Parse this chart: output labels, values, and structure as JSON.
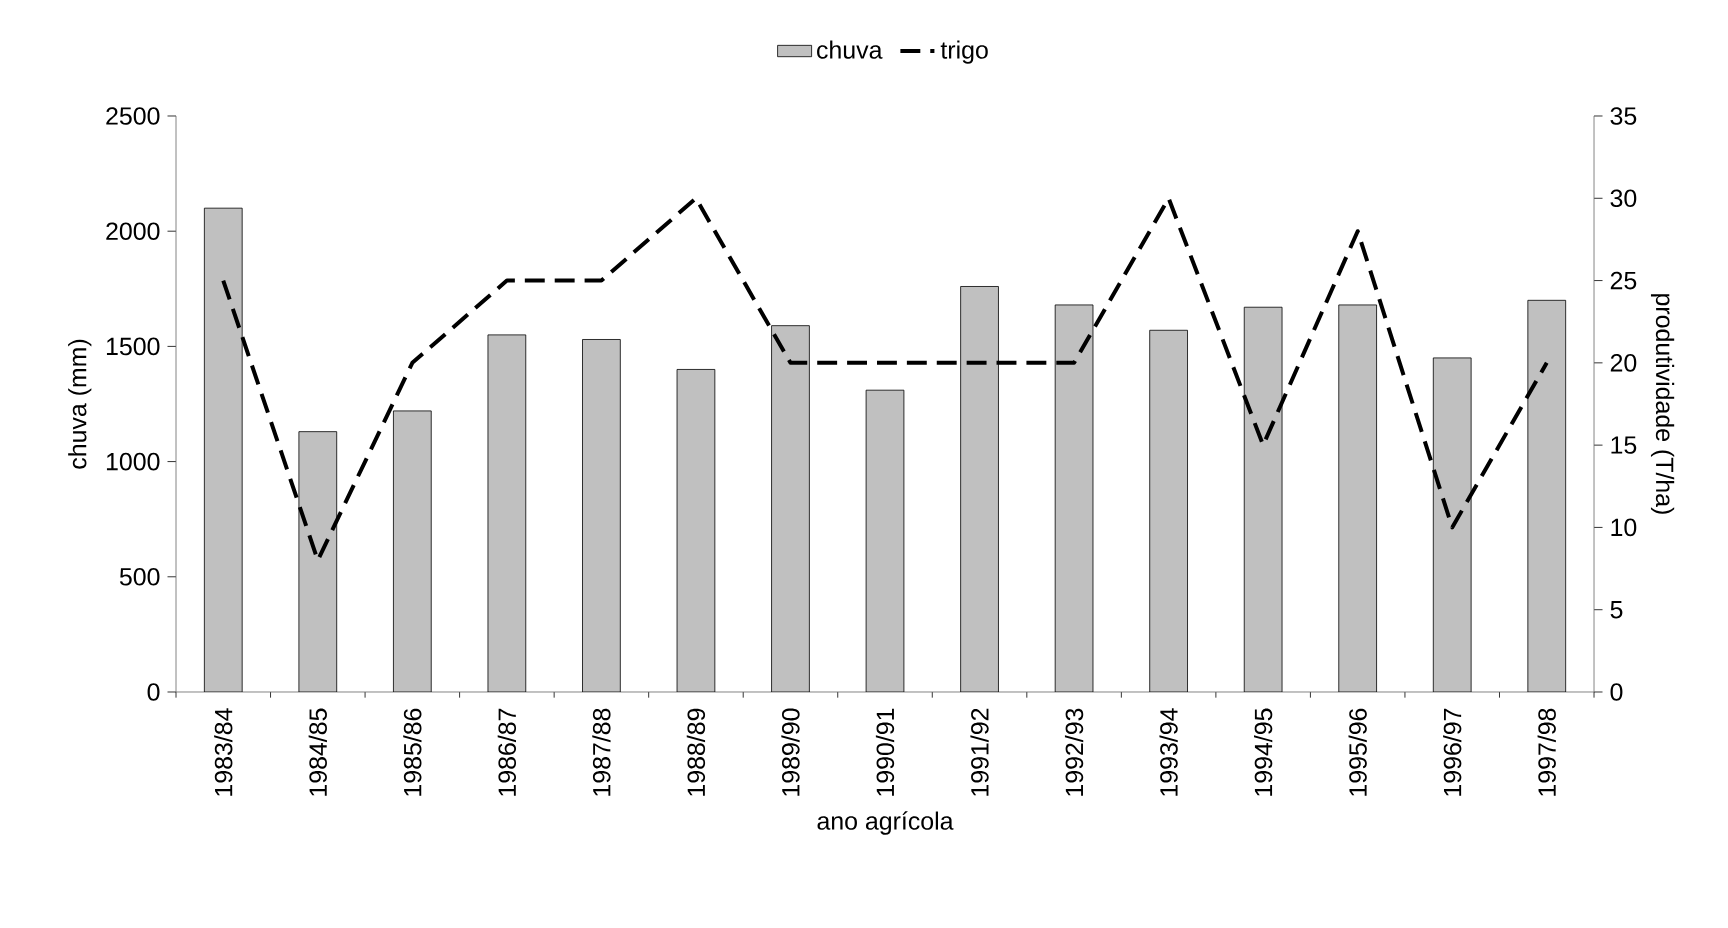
{
  "chart_data": {
    "type": "bar",
    "xlabel": "ano agrícola",
    "ylabel": "chuva (mm)",
    "y2label": "produtividade (T/ha)",
    "categories": [
      "1983/84",
      "1984/85",
      "1985/86",
      "1986/87",
      "1987/88",
      "1988/89",
      "1989/90",
      "1990/91",
      "1991/92",
      "1992/93",
      "1993/94",
      "1994/95",
      "1995/96",
      "1996/97",
      "1997/98"
    ],
    "series": [
      {
        "name": "chuva",
        "color": "#c0c0c0",
        "values": [
          2100,
          1130,
          1220,
          1550,
          1530,
          1400,
          1590,
          1310,
          1760,
          1680,
          1570,
          1670,
          1680,
          1450,
          1700
        ]
      },
      {
        "name": "trigo",
        "type": "line",
        "axis": "y2",
        "color": "#000000",
        "line_style": "dashed",
        "values": [
          25,
          8,
          20,
          25,
          25,
          30,
          20,
          20,
          20,
          20,
          30,
          15,
          28,
          10,
          20
        ]
      }
    ],
    "ylim": [
      0,
      2500
    ],
    "yticks": [
      0,
      500,
      1000,
      1500,
      2000,
      2500
    ],
    "y2lim": [
      0,
      35
    ],
    "y2ticks": [
      0,
      5,
      10,
      15,
      20,
      25,
      30,
      35
    ],
    "grid": false,
    "legend": "top",
    "marker": "none"
  }
}
